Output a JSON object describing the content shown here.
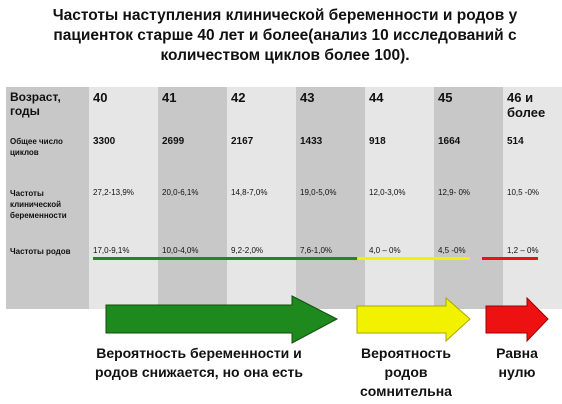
{
  "title": "Частоты наступления клинической беременности и родов у пациенток старше 40 лет и более(анализ 10 исследований с количеством циклов более 100).",
  "table": {
    "row_headers": [
      "Возраст, годы",
      "Общее число циклов",
      "Частоты клинической беременности",
      "Частоты родов"
    ],
    "ages": [
      "40",
      "41",
      "42",
      "43",
      "44",
      "45",
      "46 и более"
    ],
    "cycles": [
      "3300",
      "2699",
      "2167",
      "1433",
      "918",
      "1664",
      "514"
    ],
    "pregnancy": [
      "27,2-13,9%",
      "20,0-6,1%",
      "14,8-7,0%",
      "19,0-5,0%",
      "12,0-3,0%",
      "12,9- 0%",
      "10,5 -0%"
    ],
    "births": [
      "17,0-9,1%",
      "10,0-4,0%",
      "9,2-2,0%",
      "7,6-1,0%",
      "4,0 – 0%",
      "4,5 -0%",
      "1,2 – 0%"
    ]
  },
  "colors": {
    "green": "#1e8a1e",
    "yellow": "#f2f200",
    "red": "#ee1111",
    "dark_cell": "#c8c8c8",
    "light_cell": "#e6e6e6"
  },
  "captions": {
    "green": "Вероятность беременности и родов снижается, но она есть",
    "yellow": "Вероятность родов сомнительна",
    "red": "Равна нулю"
  }
}
